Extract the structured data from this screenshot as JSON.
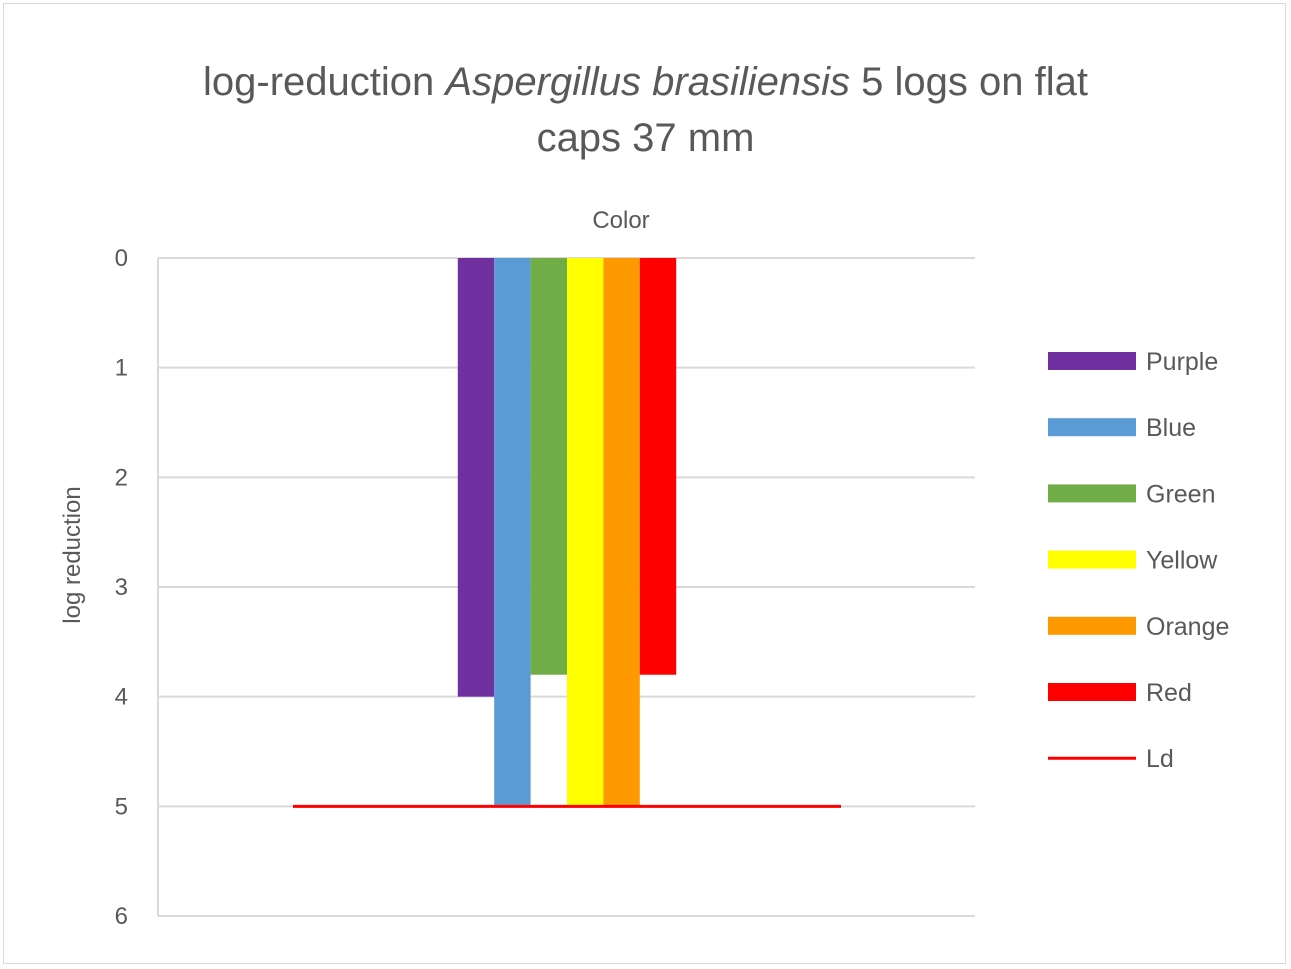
{
  "chart_data": {
    "type": "bar",
    "title": {
      "prefix": "log-reduction ",
      "italic": "Aspergillus brasiliensis",
      "suffix": " 5 logs on flat",
      "line2": "caps 37 mm"
    },
    "xlabel": "Color",
    "ylabel": "log reduction",
    "categories": [
      "Color"
    ],
    "y_axis": {
      "min": 0,
      "max": 6,
      "step": 1,
      "reversed": true,
      "ticks": [
        "0",
        "1",
        "2",
        "3",
        "4",
        "5",
        "6"
      ]
    },
    "grid": true,
    "legend_position": "right",
    "series": [
      {
        "name": "Purple",
        "color": "#7030a0",
        "values": [
          4.0
        ]
      },
      {
        "name": "Blue",
        "color": "#5b9bd5",
        "values": [
          5.0
        ]
      },
      {
        "name": "Green",
        "color": "#70ad47",
        "values": [
          3.8
        ]
      },
      {
        "name": "Yellow",
        "color": "#ffff00",
        "values": [
          5.0
        ]
      },
      {
        "name": "Orange",
        "color": "#ff9900",
        "values": [
          5.0
        ]
      },
      {
        "name": "Red",
        "color": "#ff0000",
        "values": [
          3.8
        ]
      }
    ],
    "limit_line": {
      "name": "Ld",
      "color": "#ff0000",
      "value": 5
    }
  }
}
